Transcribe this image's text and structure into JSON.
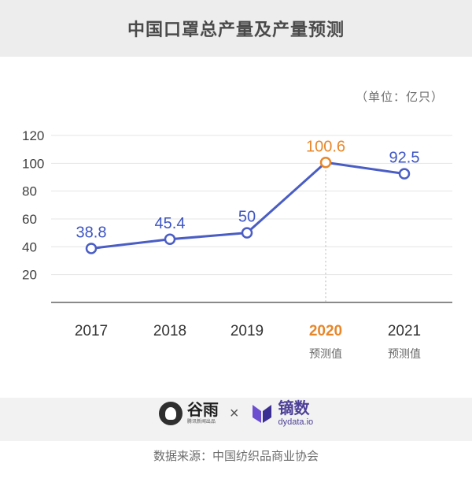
{
  "header": {
    "title": "中国口罩总产量及产量预测"
  },
  "unit_label": "（单位：亿只）",
  "chart_data": {
    "type": "line",
    "title": "中国口罩总产量及产量预测",
    "categories": [
      "2017",
      "2018",
      "2019",
      "2020",
      "2021"
    ],
    "values": [
      38.8,
      45.4,
      50,
      100.6,
      92.5
    ],
    "value_labels": [
      "38.8",
      "45.4",
      "50",
      "100.6",
      "92.5"
    ],
    "forecast_flags": [
      false,
      false,
      false,
      true,
      true
    ],
    "forecast_label": "预测值",
    "highlight_index": 3,
    "ylim": [
      0,
      120
    ],
    "yticks": [
      20,
      40,
      60,
      80,
      100,
      120
    ],
    "grid": true,
    "colors": {
      "line": "#4a5dc4",
      "highlight": "#e8872a",
      "label": "#3d55c4",
      "axis_text": "#3f3f3f",
      "grid": "#e4e4e4"
    }
  },
  "footer": {
    "guyu_name": "谷雨",
    "guyu_sub": "腾讯新闻出品",
    "separator": "×",
    "dydata_name": "镝数",
    "dydata_sub": "dydata.io",
    "source": "数据来源：中国纺织品商业协会"
  }
}
